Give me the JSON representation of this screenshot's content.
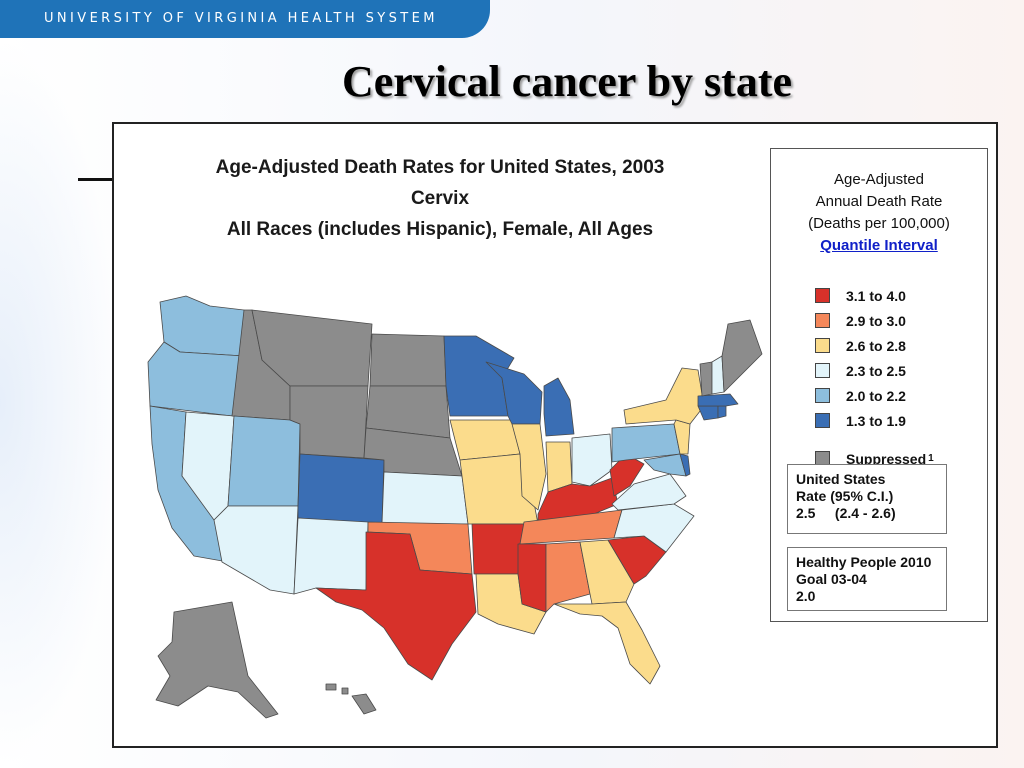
{
  "header": {
    "brand": "UNIVERSITY OF VIRGINIA HEALTH SYSTEM",
    "brand_color": "#1f73b8"
  },
  "slide": {
    "title": "Cervical cancer by state"
  },
  "map": {
    "title_lines": [
      "Age-Adjusted Death Rates for United States, 2003",
      "Cervix",
      "All Races (includes Hispanic), Female, All Ages"
    ],
    "legend": {
      "heading_lines": [
        "Age-Adjusted",
        "Annual Death Rate",
        "(Deaths per 100,000)"
      ],
      "link": "Quantile Interval",
      "items": [
        {
          "label": "3.1  to  4.0",
          "color": "#d7312a"
        },
        {
          "label": "2.9  to  3.0",
          "color": "#f4875a"
        },
        {
          "label": "2.6  to  2.8",
          "color": "#fbdc8c"
        },
        {
          "label": "2.3  to  2.5",
          "color": "#e2f4fa"
        },
        {
          "label": "2.0  to  2.2",
          "color": "#8dbedd"
        },
        {
          "label": "1.3  to  1.9",
          "color": "#3a6eb4"
        }
      ],
      "suppressed": {
        "label": "Suppressed",
        "footnote": "1",
        "color": "#8c8c8c"
      },
      "us_rate": {
        "line1": "United States",
        "line2": "Rate  (95% C.I.)",
        "line3": "2.5     (2.4 - 2.6)"
      },
      "healthy_people": {
        "line1": "Healthy People 2010",
        "line2": "Goal 03-04",
        "line3": "2.0"
      }
    }
  }
}
